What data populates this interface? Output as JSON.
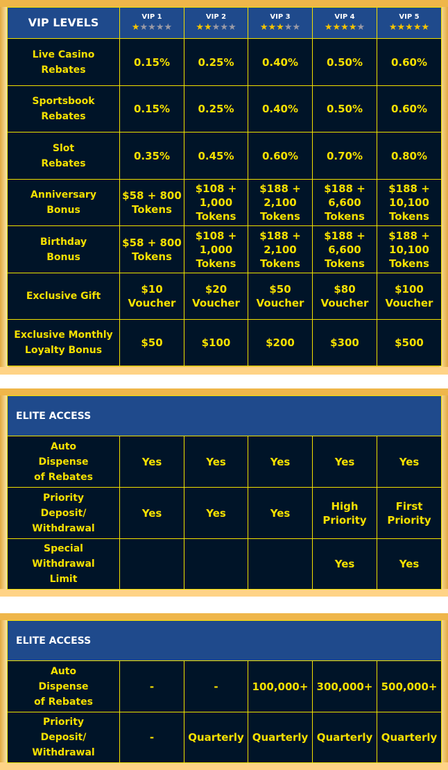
{
  "colors": {
    "header_bg": "#1f4a8c",
    "cell_bg": "#001428",
    "text": "#f5e000",
    "border": "#f2e100",
    "frame": "#efb64a"
  },
  "vip_table": {
    "title": "VIP LEVELS",
    "levels": [
      {
        "name": "VIP 1",
        "stars": 1
      },
      {
        "name": "VIP 2",
        "stars": 2
      },
      {
        "name": "VIP 3",
        "stars": 3
      },
      {
        "name": "VIP 4",
        "stars": 4
      },
      {
        "name": "VIP 5",
        "stars": 5
      }
    ],
    "max_stars": 5,
    "rows": [
      {
        "label": "Live Casino\nRebates",
        "values": [
          "0.15%",
          "0.25%",
          "0.40%",
          "0.50%",
          "0.60%"
        ]
      },
      {
        "label": "Sportsbook\nRebates",
        "values": [
          "0.15%",
          "0.25%",
          "0.40%",
          "0.50%",
          "0.60%"
        ]
      },
      {
        "label": "Slot\nRebates",
        "values": [
          "0.35%",
          "0.45%",
          "0.60%",
          "0.70%",
          "0.80%"
        ]
      },
      {
        "label": "Anniversary\nBonus",
        "values": [
          "$58 + 800\nTokens",
          "$108 +\n1,000\nTokens",
          "$188 +\n2,100\nTokens",
          "$188 +\n6,600\nTokens",
          "$188 +\n10,100\nTokens"
        ]
      },
      {
        "label": "Birthday\nBonus",
        "values": [
          "$58 + 800\nTokens",
          "$108 +\n1,000\nTokens",
          "$188 +\n2,100\nTokens",
          "$188 +\n6,600\nTokens",
          "$188 +\n10,100\nTokens"
        ]
      },
      {
        "label": "Exclusive Gift",
        "values": [
          "$10\nVoucher",
          "$20\nVoucher",
          "$50\nVoucher",
          "$80\nVoucher",
          "$100\nVoucher"
        ]
      },
      {
        "label": "Exclusive Monthly\nLoyalty Bonus",
        "values": [
          "$50",
          "$100",
          "$200",
          "$300",
          "$500"
        ]
      }
    ]
  },
  "elite_access_1": {
    "title": "ELITE ACCESS",
    "rows": [
      {
        "label": "Auto\nDispense\nof Rebates",
        "values": [
          "Yes",
          "Yes",
          "Yes",
          "Yes",
          "Yes"
        ]
      },
      {
        "label": "Priority\nDeposit/\nWithdrawal",
        "values": [
          "Yes",
          "Yes",
          "Yes",
          "High\nPriority",
          "First\nPriority"
        ]
      },
      {
        "label": "Special\nWithdrawal\nLimit",
        "values": [
          "",
          "",
          "",
          "Yes",
          "Yes"
        ]
      }
    ]
  },
  "elite_access_2": {
    "title": "ELITE ACCESS",
    "rows": [
      {
        "label": "Auto\nDispense\nof Rebates",
        "values": [
          "-",
          "-",
          "100,000+",
          "300,000+",
          "500,000+"
        ]
      },
      {
        "label": "Priority\nDeposit/\nWithdrawal",
        "values": [
          "-",
          "Quarterly",
          "Quarterly",
          "Quarterly",
          "Quarterly"
        ]
      }
    ]
  }
}
